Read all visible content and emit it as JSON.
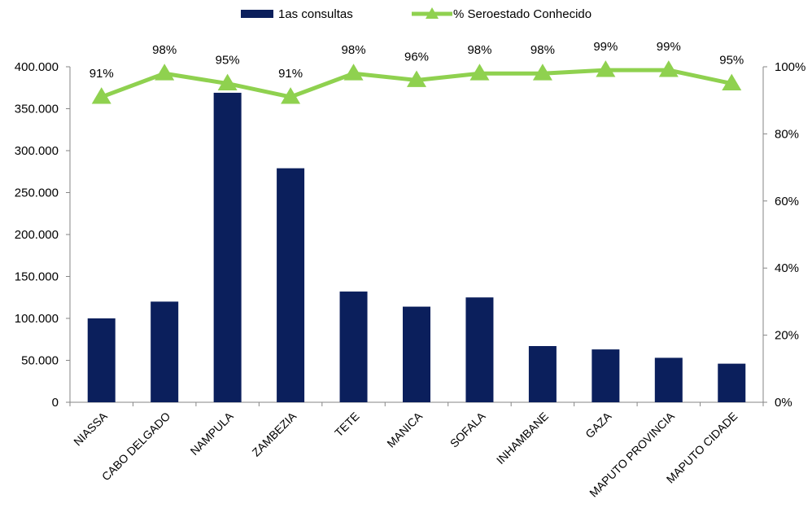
{
  "chart_data": {
    "type": "bar",
    "categories": [
      "NIASSA",
      "CABO DELGADO",
      "NAMPULA",
      "ZAMBEZIA",
      "TETE",
      "MANICA",
      "SOFALA",
      "INHAMBANE",
      "GAZA",
      "MAPUTO PROVINCIA",
      "MAPUTO CIDADE"
    ],
    "series": [
      {
        "name": "1as consultas",
        "type": "bar",
        "axis": "left",
        "color": "#0b1f5c",
        "values": [
          100000,
          120000,
          369000,
          279000,
          132000,
          114000,
          125000,
          67000,
          63000,
          53000,
          46000
        ]
      },
      {
        "name": "% Seroestado Conhecido",
        "type": "line",
        "axis": "right",
        "color": "#8fd14f",
        "marker": "triangle",
        "values": [
          91,
          98,
          95,
          91,
          98,
          96,
          98,
          98,
          99,
          99,
          95
        ],
        "data_labels": [
          "91%",
          "98%",
          "95%",
          "91%",
          "98%",
          "96%",
          "98%",
          "98%",
          "99%",
          "99%",
          "95%"
        ]
      }
    ],
    "y_left": {
      "lim": [
        0,
        400000
      ],
      "ticks": [
        0,
        50000,
        100000,
        150000,
        200000,
        250000,
        300000,
        350000,
        400000
      ],
      "tick_labels": [
        "0",
        "50.000",
        "100.000",
        "150.000",
        "200.000",
        "250.000",
        "300.000",
        "350.000",
        "400.000"
      ]
    },
    "y_right": {
      "lim": [
        0,
        100
      ],
      "ticks": [
        0,
        20,
        40,
        60,
        80,
        100
      ],
      "tick_labels": [
        "0%",
        "20%",
        "40%",
        "60%",
        "80%",
        "100%"
      ]
    },
    "grid": false,
    "legend_position": "top"
  }
}
